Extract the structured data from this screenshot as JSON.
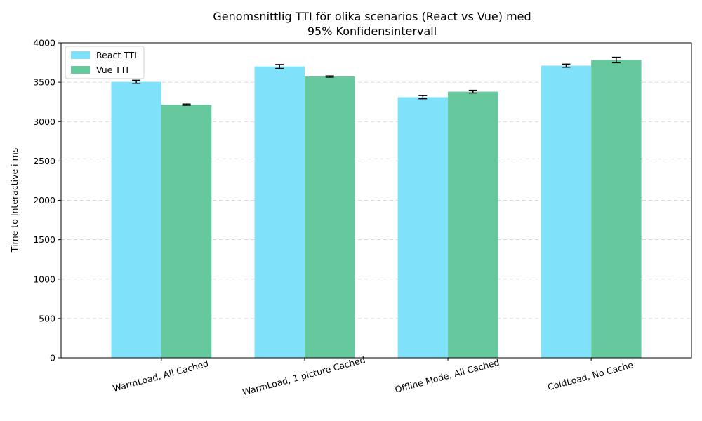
{
  "chart_data": {
    "type": "bar",
    "title_lines": [
      "Genomsnittlig TTI  för olika scenarios (React vs Vue) med",
      "95% Konfidensintervall"
    ],
    "xlabel": "",
    "ylabel": "Time to Interactive  i ms",
    "categories": [
      "WarmLoad, All Cached",
      "WarmLoad, 1 picture Cached",
      "Offline Mode, All Cached",
      "ColdLoad, No Cache"
    ],
    "series": [
      {
        "name": "React TTI",
        "color": "#80e2fa",
        "values": [
          3505,
          3700,
          3310,
          3710
        ],
        "ci": [
          20,
          25,
          20,
          20
        ]
      },
      {
        "name": "Vue TTI",
        "color": "#66c89d",
        "values": [
          3215,
          3572,
          3380,
          3782
        ],
        "ci": [
          8,
          8,
          18,
          35
        ]
      }
    ],
    "ylim": [
      0,
      4000
    ],
    "yticks": [
      0,
      500,
      1000,
      1500,
      2000,
      2500,
      3000,
      3500,
      4000
    ],
    "grid": "y-dashed",
    "legend_position": "top-left"
  }
}
